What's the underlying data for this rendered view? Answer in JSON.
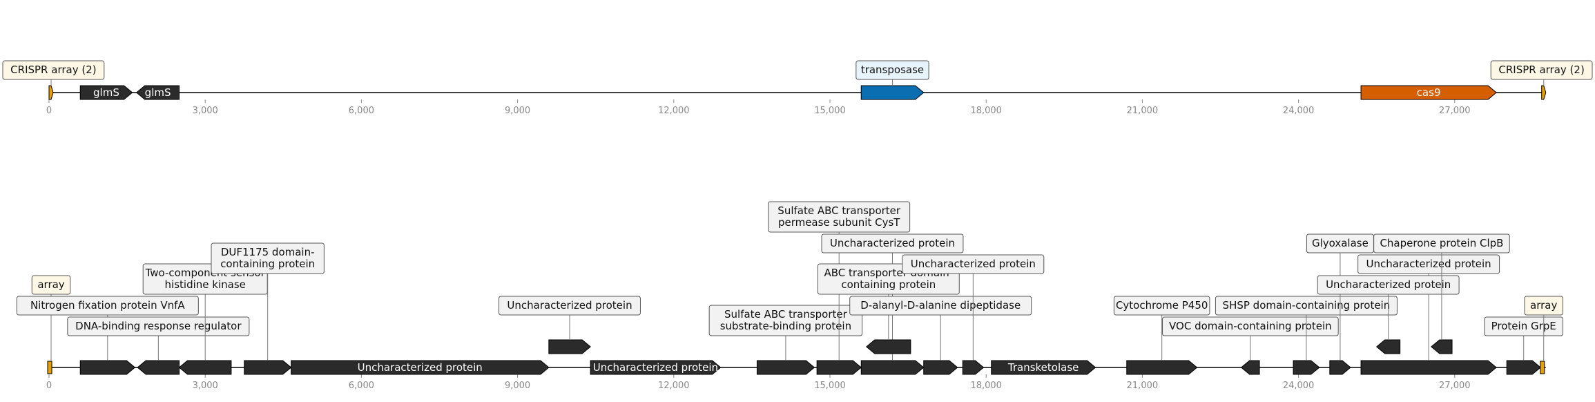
{
  "track_top": {
    "genes": [
      {
        "start": 0,
        "end": 80,
        "strand": 1,
        "color": "#e69f00",
        "label": "CRISPR array (2)",
        "boxed": true,
        "box_color": "#fdf8e6",
        "level": 0
      },
      {
        "start": 600,
        "end": 1600,
        "strand": 1,
        "color": "#2b2b2b",
        "label": "glmS",
        "boxed": false
      },
      {
        "start": 1680,
        "end": 2500,
        "strand": -1,
        "color": "#2b2b2b",
        "label": "glmS",
        "boxed": false
      },
      {
        "start": 15600,
        "end": 16800,
        "strand": 1,
        "color": "#0a6eb0",
        "label": "transposase",
        "boxed": true,
        "box_color": "#e8f4fb",
        "level": 0
      },
      {
        "start": 25200,
        "end": 27800,
        "strand": 1,
        "color": "#d55e00",
        "label": "cas9",
        "boxed": false
      },
      {
        "start": 28670,
        "end": 28750,
        "strand": 1,
        "color": "#e69f00",
        "label": "CRISPR array (2)",
        "boxed": true,
        "box_color": "#fdf8e6",
        "level": 0
      }
    ],
    "ticks": [
      "0",
      "3,000",
      "6,000",
      "9,000",
      "12,000",
      "15,000",
      "18,000",
      "21,000",
      "24,000",
      "27,000"
    ]
  },
  "track_bottom": {
    "genes": [
      {
        "start": 0,
        "end": 80,
        "strand": 1,
        "color": "#e69f00",
        "label": "array",
        "boxed": true,
        "box_color": "#fdf8e6",
        "level": 2,
        "tip_only": true
      },
      {
        "start": 600,
        "end": 1650,
        "strand": 1,
        "color": "#2b2b2b",
        "label": "Nitrogen fixation protein VnfA",
        "boxed": true,
        "level": 1
      },
      {
        "start": 1700,
        "end": 2500,
        "strand": -1,
        "color": "#2b2b2b",
        "label": "DNA-binding response regulator",
        "boxed": true,
        "level": 0
      },
      {
        "start": 2500,
        "end": 3500,
        "strand": -1,
        "color": "#2b2b2b",
        "label": "Two-component sensor\nhistidine kinase",
        "boxed": true,
        "level": 2
      },
      {
        "start": 3750,
        "end": 4650,
        "strand": 1,
        "color": "#2b2b2b",
        "label": "DUF1175 domain-\ncontaining protein",
        "boxed": true,
        "level": 3
      },
      {
        "start": 4650,
        "end": 9600,
        "strand": 1,
        "color": "#2b2b2b",
        "label": "Uncharacterized protein",
        "boxed": false
      },
      {
        "start": 9600,
        "end": 10400,
        "strand": 1,
        "color": "#2b2b2b",
        "label": "Uncharacterized protein",
        "boxed": true,
        "level": 1,
        "raised": true
      },
      {
        "start": 10400,
        "end": 12900,
        "strand": 1,
        "color": "#2b2b2b",
        "label": "Uncharacterized protein",
        "boxed": false
      },
      {
        "start": 13600,
        "end": 14700,
        "strand": 1,
        "color": "#2b2b2b",
        "label": "Sulfate ABC transporter\nsubstrate-binding protein",
        "boxed": true,
        "level": 0
      },
      {
        "start": 14750,
        "end": 15600,
        "strand": 1,
        "color": "#2b2b2b",
        "label": "Sulfate ABC transporter\npermease subunit CysT",
        "boxed": true,
        "level": 5
      },
      {
        "start": 15600,
        "end": 16800,
        "strand": 1,
        "color": "#2b2b2b",
        "label": "Uncharacterized protein",
        "boxed": true,
        "level": 4
      },
      {
        "start": 15700,
        "end": 16550,
        "strand": -1,
        "color": "#2b2b2b",
        "label": "ABC transporter domain-\ncontaining protein",
        "boxed": true,
        "level": 2,
        "raised": true
      },
      {
        "start": 16800,
        "end": 17450,
        "strand": 1,
        "color": "#2b2b2b",
        "label": "D-alanyl-D-alanine dipeptidase",
        "boxed": true,
        "level": 1
      },
      {
        "start": 17550,
        "end": 17950,
        "strand": 1,
        "color": "#2b2b2b",
        "label": "Uncharacterized protein",
        "boxed": true,
        "level": 3
      },
      {
        "start": 18100,
        "end": 20100,
        "strand": 1,
        "color": "#2b2b2b",
        "label": "Transketolase",
        "boxed": false
      },
      {
        "start": 20700,
        "end": 22050,
        "strand": 1,
        "color": "#2b2b2b",
        "label": "Cytochrome P450",
        "boxed": true,
        "level": 1
      },
      {
        "start": 22900,
        "end": 23250,
        "strand": -1,
        "color": "#2b2b2b",
        "label": "VOC domain-containing protein",
        "boxed": true,
        "level": 0
      },
      {
        "start": 23900,
        "end": 24400,
        "strand": 1,
        "color": "#2b2b2b",
        "label": "SHSP domain-containing protein",
        "boxed": true,
        "level": 1
      },
      {
        "start": 24600,
        "end": 25000,
        "strand": 1,
        "color": "#2b2b2b",
        "label": "Glyoxalase",
        "boxed": true,
        "level": 4
      },
      {
        "start": 25200,
        "end": 27800,
        "strand": 1,
        "color": "#2b2b2b",
        "label": "Uncharacterized protein",
        "boxed": true,
        "level": 3
      },
      {
        "start": 25500,
        "end": 25950,
        "strand": -1,
        "color": "#2b2b2b",
        "label": "Uncharacterized protein",
        "boxed": true,
        "level": 2,
        "raised": true
      },
      {
        "start": 26550,
        "end": 26950,
        "strand": -1,
        "color": "#2b2b2b",
        "label": "Chaperone protein ClpB",
        "boxed": true,
        "level": 4,
        "raised": true
      },
      {
        "start": 28000,
        "end": 28650,
        "strand": 1,
        "color": "#2b2b2b",
        "label": "Protein GrpE",
        "boxed": true,
        "level": 0
      },
      {
        "start": 28670,
        "end": 28750,
        "strand": 1,
        "color": "#e69f00",
        "label": "array",
        "boxed": true,
        "box_color": "#fdf8e6",
        "level": 1,
        "tip_only": true
      }
    ],
    "ticks": [
      "0",
      "3,000",
      "6,000",
      "9,000",
      "12,000",
      "15,000",
      "18,000",
      "21,000",
      "24,000",
      "27,000"
    ]
  }
}
